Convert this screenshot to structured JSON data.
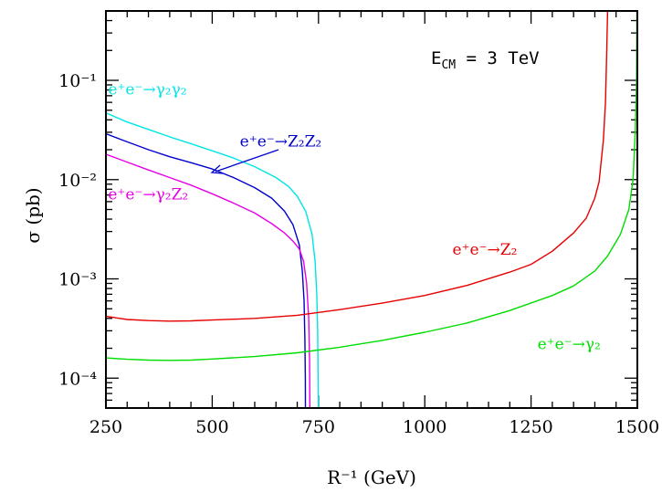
{
  "chart_data": {
    "type": "line",
    "title": "",
    "xlabel": "R⁻¹ (GeV)",
    "ylabel": "σ (pb)",
    "xlim": [
      250,
      1500
    ],
    "ylim": [
      5e-05,
      0.5
    ],
    "yscale": "log",
    "grid": false,
    "annotation": "E_CM = 3 TeV",
    "x_ticks": [
      "250",
      "500",
      "750",
      "1000",
      "1250",
      "1500"
    ],
    "y_ticks": [
      "10⁻⁴",
      "10⁻³",
      "10⁻²",
      "10⁻¹"
    ],
    "series": [
      {
        "name": "e⁺e⁻→γ₂γ₂",
        "color": "#00e5e5",
        "points": [
          [
            250,
            0.047
          ],
          [
            300,
            0.038
          ],
          [
            350,
            0.032
          ],
          [
            400,
            0.027
          ],
          [
            450,
            0.023
          ],
          [
            500,
            0.0195
          ],
          [
            550,
            0.0165
          ],
          [
            600,
            0.0135
          ],
          [
            650,
            0.0105
          ],
          [
            680,
            0.0085
          ],
          [
            700,
            0.0068
          ],
          [
            720,
            0.0048
          ],
          [
            735,
            0.0028
          ],
          [
            742,
            0.0015
          ],
          [
            746,
            0.0007
          ],
          [
            748,
            0.0003
          ],
          [
            749,
            0.00012
          ],
          [
            749.3,
            5e-05
          ]
        ]
      },
      {
        "name": "e⁺e⁻→Z₂Z₂",
        "color": "#0000cc",
        "points": [
          [
            250,
            0.029
          ],
          [
            300,
            0.024
          ],
          [
            350,
            0.02
          ],
          [
            400,
            0.017
          ],
          [
            450,
            0.0148
          ],
          [
            500,
            0.0128
          ],
          [
            550,
            0.0105
          ],
          [
            600,
            0.0083
          ],
          [
            640,
            0.0065
          ],
          [
            670,
            0.0048
          ],
          [
            690,
            0.0035
          ],
          [
            705,
            0.0022
          ],
          [
            712,
            0.0012
          ],
          [
            716,
            0.0006
          ],
          [
            718,
            0.00025
          ],
          [
            719,
            0.0001
          ],
          [
            719.2,
            5e-05
          ]
        ]
      },
      {
        "name": "e⁺e⁻→γ₂Z₂",
        "color": "#e600e6",
        "points": [
          [
            250,
            0.018
          ],
          [
            300,
            0.015
          ],
          [
            350,
            0.0125
          ],
          [
            400,
            0.0105
          ],
          [
            450,
            0.0088
          ],
          [
            500,
            0.0072
          ],
          [
            550,
            0.0058
          ],
          [
            600,
            0.0046
          ],
          [
            640,
            0.0036
          ],
          [
            670,
            0.0029
          ],
          [
            690,
            0.0024
          ],
          [
            705,
            0.002
          ],
          [
            715,
            0.0015
          ],
          [
            722,
            0.0009
          ],
          [
            727,
            0.0004
          ],
          [
            729,
            0.00015
          ],
          [
            729.5,
            5e-05
          ]
        ]
      },
      {
        "name": "e⁺e⁻→Z₂",
        "color": "#e60000",
        "points": [
          [
            250,
            0.00042
          ],
          [
            300,
            0.00039
          ],
          [
            350,
            0.00038
          ],
          [
            400,
            0.000375
          ],
          [
            450,
            0.000378
          ],
          [
            500,
            0.000385
          ],
          [
            600,
            0.0004
          ],
          [
            700,
            0.00043
          ],
          [
            800,
            0.00049
          ],
          [
            900,
            0.00057
          ],
          [
            1000,
            0.00068
          ],
          [
            1100,
            0.00086
          ],
          [
            1200,
            0.00117
          ],
          [
            1250,
            0.0014
          ],
          [
            1300,
            0.0019
          ],
          [
            1350,
            0.0029
          ],
          [
            1380,
            0.0041
          ],
          [
            1400,
            0.0065
          ],
          [
            1410,
            0.0095
          ],
          [
            1420,
            0.025
          ],
          [
            1425,
            0.06
          ],
          [
            1428,
            0.2
          ],
          [
            1430,
            0.5
          ]
        ]
      },
      {
        "name": "e⁺e⁻→γ₂",
        "color": "#00dd00",
        "points": [
          [
            250,
            0.00016
          ],
          [
            300,
            0.000155
          ],
          [
            350,
            0.000152
          ],
          [
            400,
            0.000151
          ],
          [
            450,
            0.000152
          ],
          [
            500,
            0.000156
          ],
          [
            600,
            0.000165
          ],
          [
            700,
            0.00018
          ],
          [
            800,
            0.000205
          ],
          [
            900,
            0.00024
          ],
          [
            1000,
            0.00029
          ],
          [
            1100,
            0.00036
          ],
          [
            1200,
            0.00048
          ],
          [
            1300,
            0.00068
          ],
          [
            1350,
            0.00085
          ],
          [
            1400,
            0.0012
          ],
          [
            1430,
            0.0017
          ],
          [
            1460,
            0.0028
          ],
          [
            1480,
            0.005
          ],
          [
            1490,
            0.01
          ],
          [
            1495,
            0.03
          ],
          [
            1498,
            0.1
          ],
          [
            1499,
            0.5
          ]
        ]
      }
    ],
    "labels": [
      {
        "text": "e⁺e⁻→γ₂γ₂",
        "color": "#00e5e5",
        "x": 255,
        "y": 0.072
      },
      {
        "text": "e⁺e⁻→Z₂Z₂",
        "color": "#0000cc",
        "x": 565,
        "y": 0.0215
      },
      {
        "text": "e⁺e⁻→γ₂Z₂",
        "color": "#e600e6",
        "x": 255,
        "y": 0.0063
      },
      {
        "text": "e⁺e⁻→Z₂",
        "color": "#e60000",
        "x": 1065,
        "y": 0.00175
      },
      {
        "text": "e⁺e⁻→γ₂",
        "color": "#00dd00",
        "x": 1265,
        "y": 0.000195
      }
    ]
  }
}
